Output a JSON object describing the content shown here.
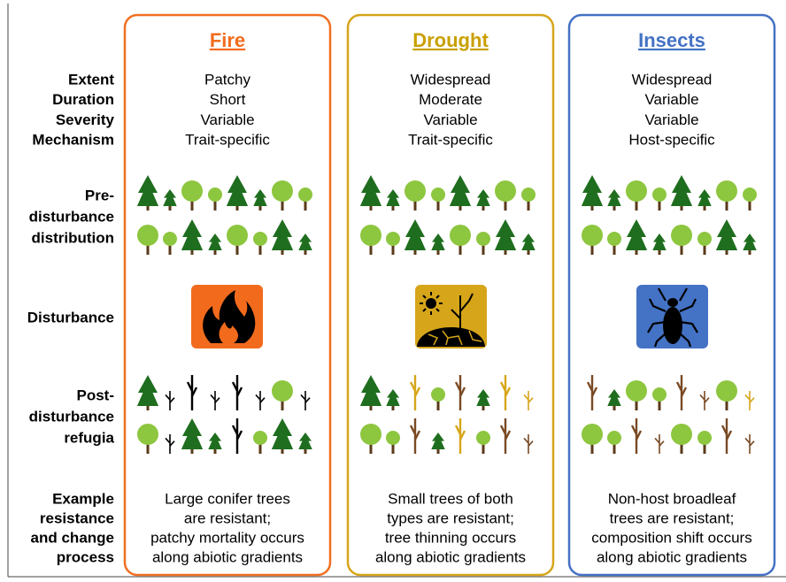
{
  "row_labels": {
    "attributes": [
      "Extent",
      "Duration",
      "Severity",
      "Mechanism"
    ],
    "pre": [
      "Pre-",
      "disturbance",
      "distribution"
    ],
    "disturbance": "Disturbance",
    "post": [
      "Post-",
      "disturbance",
      "refugia"
    ],
    "example": [
      "Example",
      "resistance",
      "and change",
      "process"
    ]
  },
  "columns": [
    {
      "title": "Fire",
      "attributes": [
        "Patchy",
        "Short",
        "Variable",
        "Trait-specific"
      ],
      "example": [
        "Large conifer trees",
        "are resistant;",
        "patchy mortality occurs",
        "along abiotic gradients"
      ]
    },
    {
      "title": "Drought",
      "attributes": [
        "Widespread",
        "Moderate",
        "Variable",
        "Trait-specific"
      ],
      "example": [
        "Small trees of both",
        "types are resistant;",
        "tree thinning occurs",
        "along abiotic gradients"
      ]
    },
    {
      "title": "Insects",
      "attributes": [
        "Widespread",
        "Variable",
        "Variable",
        "Host-specific"
      ],
      "example": [
        "Non-host broadleaf",
        "trees are resistant;",
        "composition shift occurs",
        "along abiotic gradients"
      ]
    }
  ]
}
